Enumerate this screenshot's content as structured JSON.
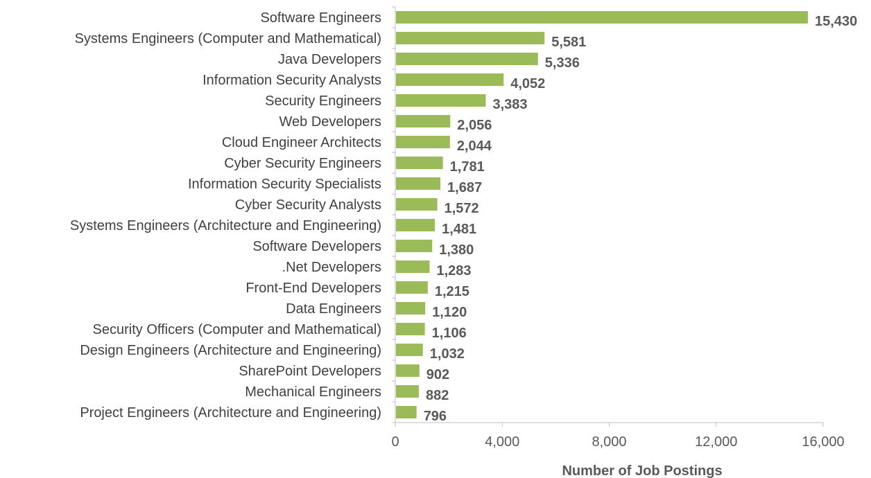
{
  "chart_data": {
    "type": "bar",
    "orientation": "horizontal",
    "title": "",
    "categories": [
      "Software Engineers",
      "Systems Engineers (Computer and Mathematical)",
      "Java Developers",
      "Information Security Analysts",
      "Security Engineers",
      "Web Developers",
      "Cloud Engineer Architects",
      "Cyber Security Engineers",
      "Information Security Specialists",
      "Cyber Security Analysts",
      "Systems Engineers (Architecture and Engineering)",
      "Software Developers",
      ".Net Developers",
      "Front-End Developers",
      "Data Engineers",
      "Security Officers (Computer and Mathematical)",
      "Design Engineers (Architecture and Engineering)",
      "SharePoint Developers",
      "Mechanical Engineers",
      "Project Engineers (Architecture and Engineering)"
    ],
    "values": [
      15430,
      5581,
      5336,
      4052,
      3383,
      2056,
      2044,
      1781,
      1687,
      1572,
      1481,
      1380,
      1283,
      1215,
      1120,
      1106,
      1032,
      902,
      882,
      796
    ],
    "value_labels": [
      "15,430",
      "5,581",
      "5,336",
      "4,052",
      "3,383",
      "2,056",
      "2,044",
      "1,781",
      "1,687",
      "1,572",
      "1,481",
      "1,380",
      "1,283",
      "1,215",
      "1,120",
      "1,106",
      "1,032",
      "902",
      "882",
      "796"
    ],
    "xlabel": "Number of Job Postings",
    "ylabel": "",
    "xlim": [
      0,
      16000
    ],
    "xticks": [
      0,
      4000,
      8000,
      12000,
      16000
    ],
    "xtick_labels": [
      "0",
      "4,000",
      "8,000",
      "12,000",
      "16,000"
    ],
    "grid": false,
    "legend": "none",
    "colors": {
      "bar": "#9BBB59",
      "axis": "#BFBFBF"
    }
  }
}
